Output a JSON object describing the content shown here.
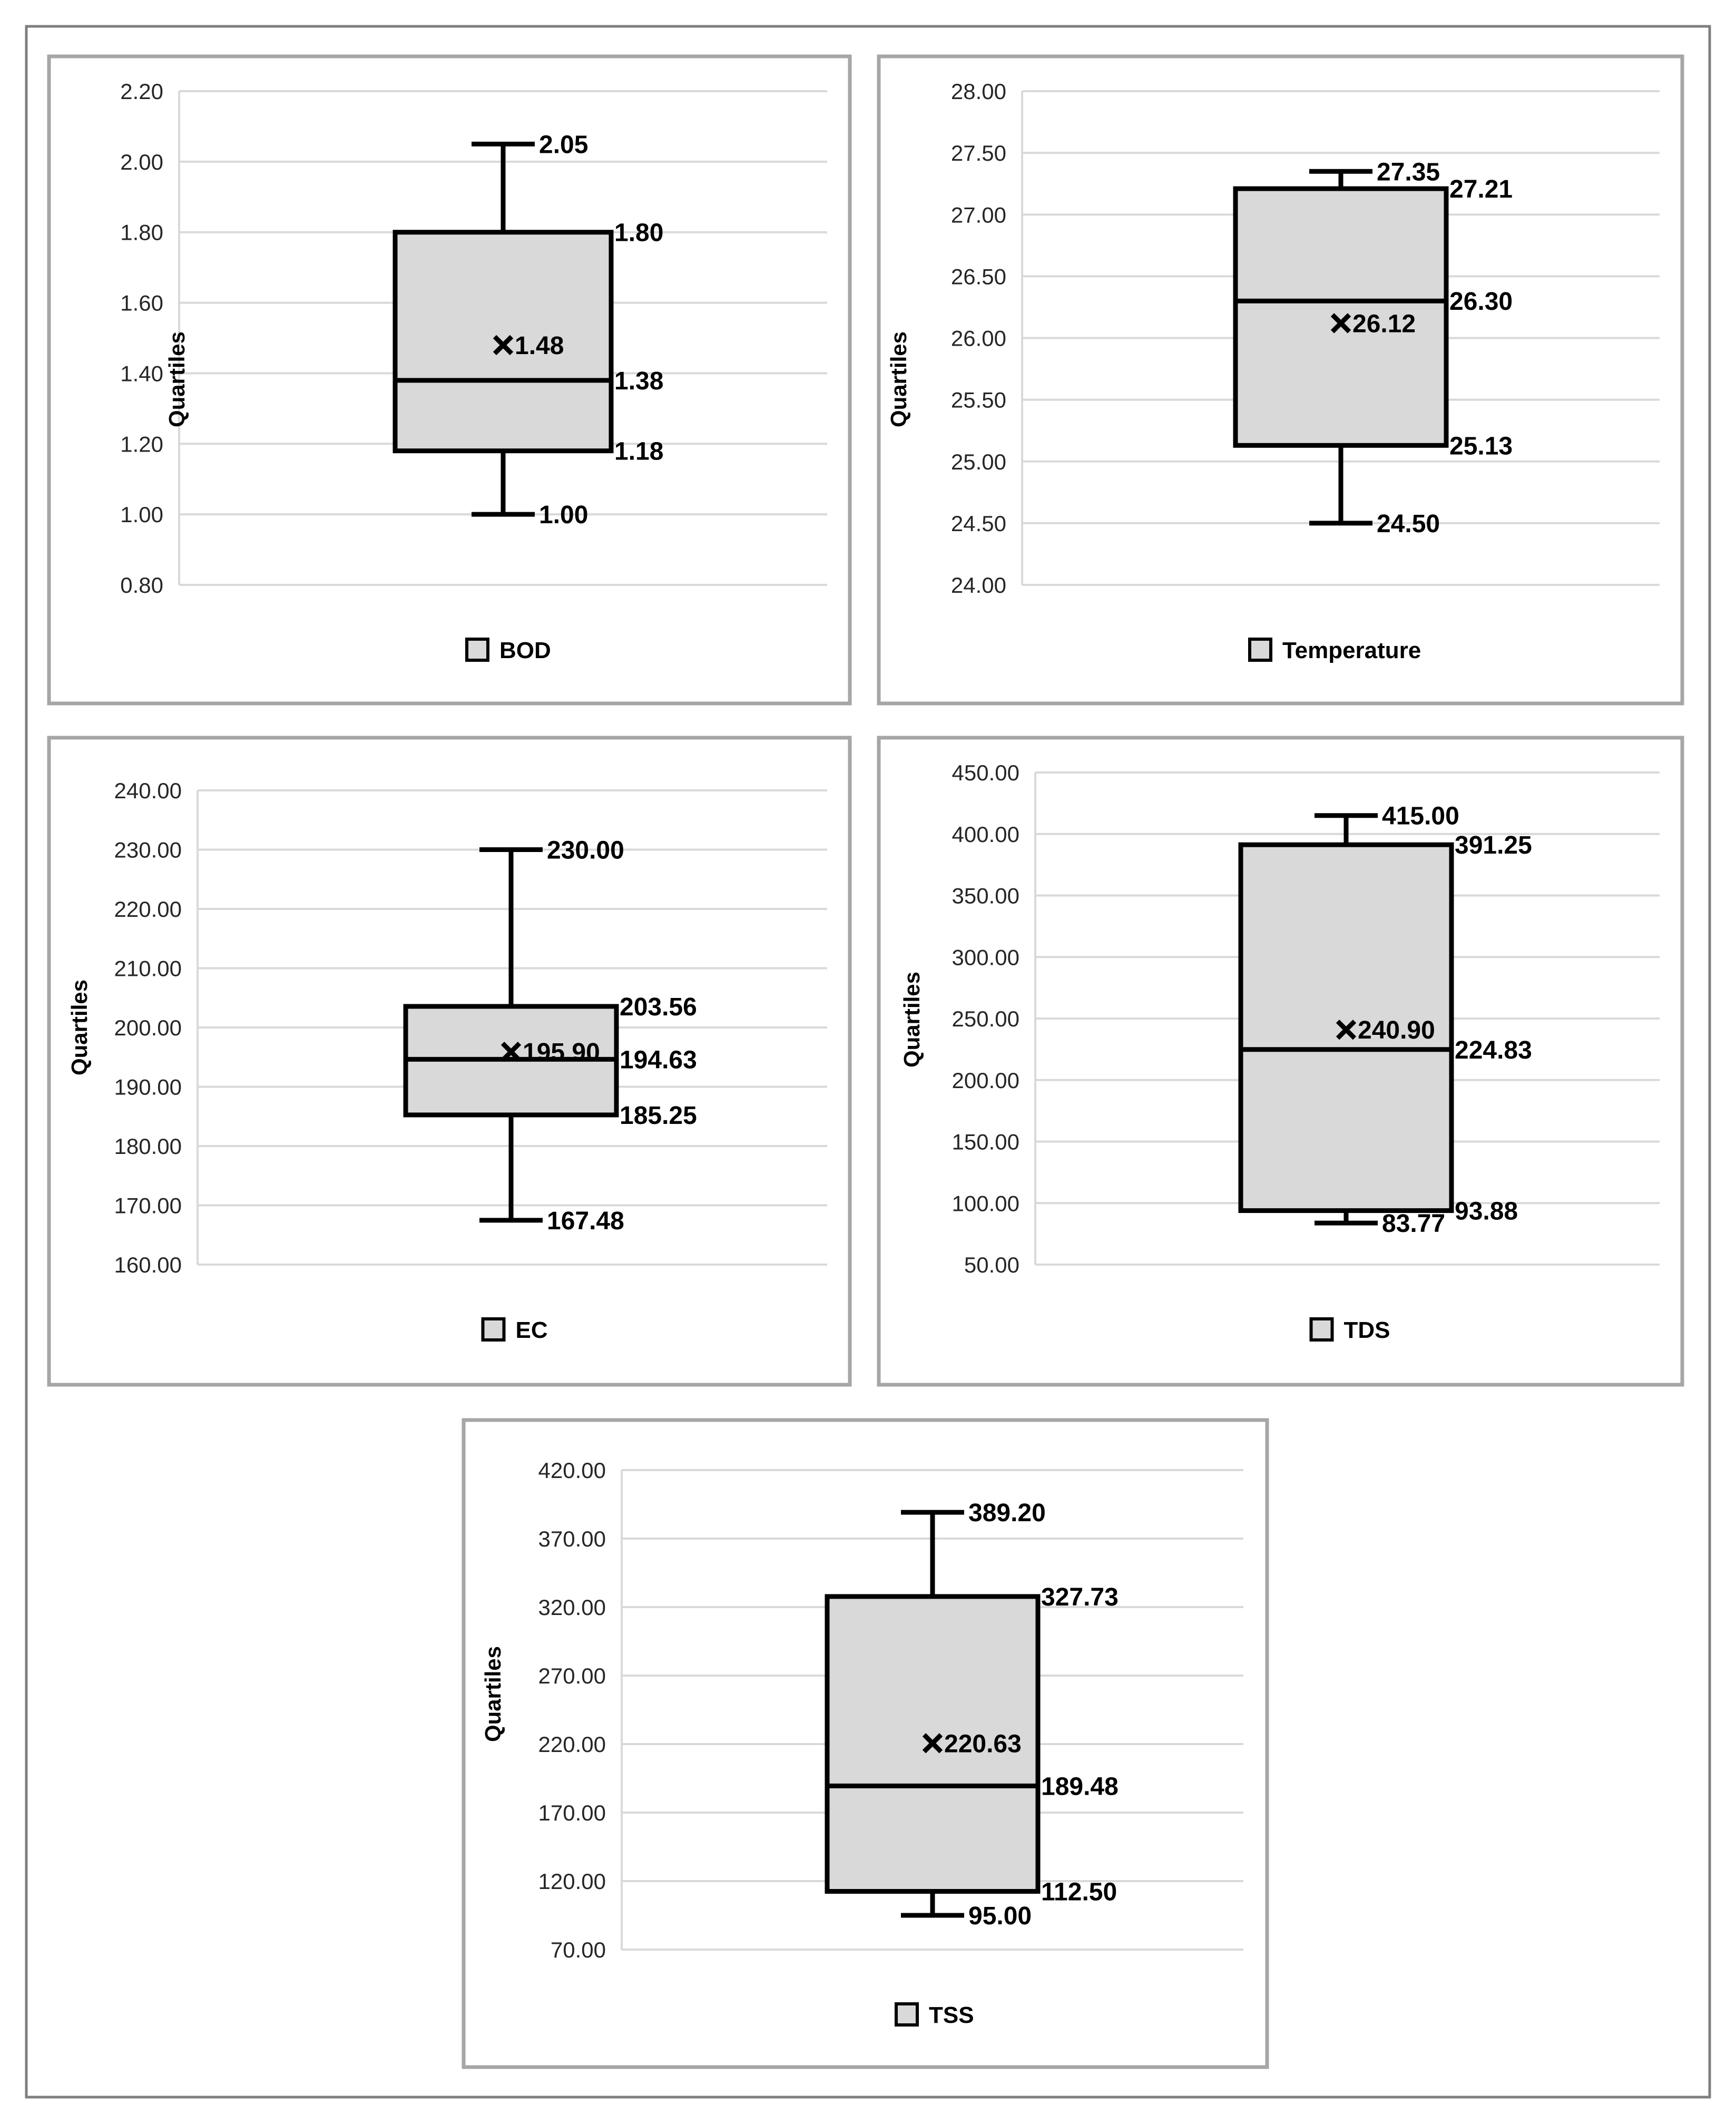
{
  "chart_data": [
    {
      "type": "box",
      "name": "BOD",
      "ylabel": "Quartiles",
      "ylim": [
        0.8,
        2.2
      ],
      "yticks": [
        "0.80",
        "1.00",
        "1.20",
        "1.40",
        "1.60",
        "1.80",
        "2.00",
        "2.20"
      ],
      "min": 1.0,
      "q1": 1.18,
      "median": 1.38,
      "q3": 1.8,
      "max": 2.05,
      "mean": 1.48,
      "labels": {
        "min": "1.00",
        "q1": "1.18",
        "median": "1.38",
        "q3": "1.80",
        "max": "2.05",
        "mean": "1.48"
      },
      "legend": "BOD"
    },
    {
      "type": "box",
      "name": "Temperature",
      "ylabel": "Quartiles",
      "ylim": [
        24.0,
        28.0
      ],
      "yticks": [
        "24.00",
        "24.50",
        "25.00",
        "25.50",
        "26.00",
        "26.50",
        "27.00",
        "27.50",
        "28.00"
      ],
      "min": 24.5,
      "q1": 25.13,
      "median": 26.3,
      "q3": 27.21,
      "max": 27.35,
      "mean": 26.12,
      "labels": {
        "min": "24.50",
        "q1": "25.13",
        "median": "26.30",
        "q3": "27.21",
        "max": "27.35",
        "mean": "26.12"
      },
      "legend": "Temperature"
    },
    {
      "type": "box",
      "name": "EC",
      "ylabel": "Quartiles",
      "ylim": [
        160.0,
        240.0
      ],
      "yticks": [
        "160.00",
        "170.00",
        "180.00",
        "190.00",
        "200.00",
        "210.00",
        "220.00",
        "230.00",
        "240.00"
      ],
      "min": 167.48,
      "q1": 185.25,
      "median": 194.63,
      "q3": 203.56,
      "max": 230.0,
      "mean": 195.9,
      "labels": {
        "min": "167.48",
        "q1": "185.25",
        "median": "194.63",
        "q3": "203.56",
        "max": "230.00",
        "mean": "195.90"
      },
      "legend": "EC"
    },
    {
      "type": "box",
      "name": "TDS",
      "ylabel": "Quartiles",
      "ylim": [
        50.0,
        450.0
      ],
      "yticks": [
        "50.00",
        "100.00",
        "150.00",
        "200.00",
        "250.00",
        "300.00",
        "350.00",
        "400.00",
        "450.00"
      ],
      "min": 83.77,
      "q1": 93.88,
      "median": 224.83,
      "q3": 391.25,
      "max": 415.0,
      "mean": 240.9,
      "labels": {
        "min": "83.77",
        "q1": "93.88",
        "median": "224.83",
        "q3": "391.25",
        "max": "415.00",
        "mean": "240.90"
      },
      "legend": "TDS"
    },
    {
      "type": "box",
      "name": "TSS",
      "ylabel": "Quartiles",
      "ylim": [
        70.0,
        420.0
      ],
      "yticks": [
        "70.00",
        "120.00",
        "170.00",
        "220.00",
        "270.00",
        "320.00",
        "370.00",
        "420.00"
      ],
      "min": 95.0,
      "q1": 112.5,
      "median": 189.48,
      "q3": 327.73,
      "max": 389.2,
      "mean": 220.63,
      "labels": {
        "min": "95.00",
        "q1": "112.50",
        "median": "189.48",
        "q3": "327.73",
        "max": "389.20",
        "mean": "220.63"
      },
      "legend": "TSS"
    }
  ]
}
